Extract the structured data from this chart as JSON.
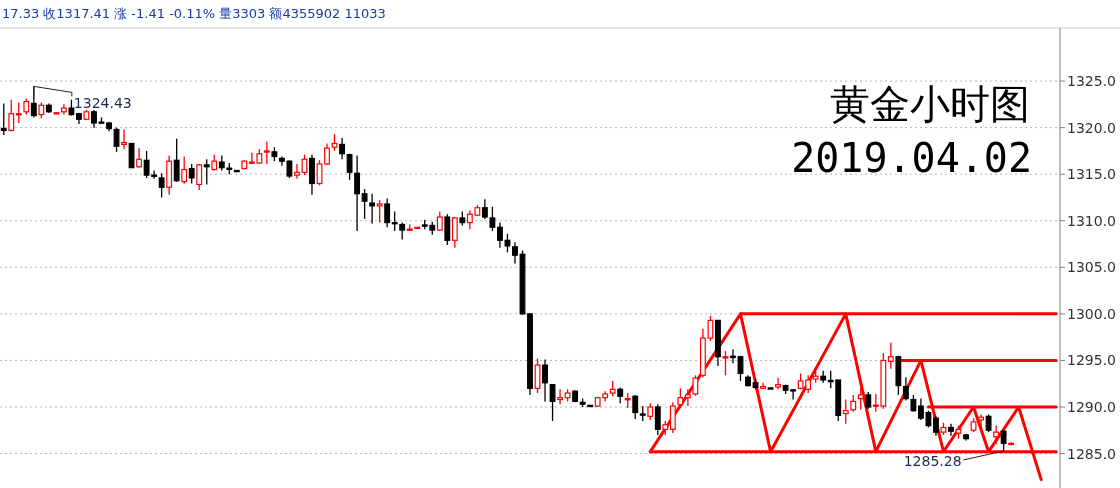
{
  "chart_data": {
    "type": "candlestick",
    "title": "黄金小时图",
    "subtitle": "2019.04.02",
    "annotations": [
      "17.33 收1317.41 涨 -1.41 -0.11% 量3303 额4355902 11033",
      "1324.43",
      "1285.28"
    ],
    "categories": [
      null,
      null,
      null,
      null,
      null,
      null,
      null,
      null,
      null,
      null,
      null,
      null,
      null,
      null,
      null,
      null,
      null,
      null,
      null,
      null,
      null,
      null,
      null,
      null,
      null,
      null,
      null,
      null,
      null,
      null,
      null,
      null,
      null,
      null,
      null,
      null,
      null,
      null,
      null,
      null,
      null,
      null,
      null,
      null,
      null,
      null,
      null,
      null,
      null,
      null,
      null,
      null,
      null,
      null,
      null,
      null,
      null,
      null,
      null,
      null,
      null,
      null,
      null,
      null,
      null,
      null,
      null,
      null,
      null,
      null,
      null,
      null,
      null,
      null,
      null,
      null,
      null,
      null,
      null,
      null,
      null,
      null,
      null,
      null,
      null,
      null,
      null,
      null,
      null,
      null,
      null,
      null,
      null,
      null,
      null,
      null,
      null,
      null,
      null,
      null,
      null,
      null,
      null,
      null,
      null,
      null,
      null,
      null,
      null,
      null,
      null,
      null,
      null,
      null,
      null,
      null,
      null,
      null,
      null,
      null,
      null,
      null,
      null,
      null,
      null,
      null,
      null,
      null,
      null,
      null,
      null,
      null,
      null,
      null,
      null,
      null,
      null,
      null,
      null,
      null,
      null
    ],
    "ohlc": [
      [
        1319.9,
        1322.6,
        1319.2,
        1319.7
      ],
      [
        1319.7,
        1323.0,
        1319.6,
        1321.5
      ],
      [
        1321.4,
        1322.7,
        1320.5,
        1321.5
      ],
      [
        1321.7,
        1323.1,
        1321.4,
        1322.8
      ],
      [
        1322.6,
        1324.43,
        1321.1,
        1321.3
      ],
      [
        1321.4,
        1322.7,
        1321.0,
        1322.4
      ],
      [
        1322.4,
        1322.6,
        1321.6,
        1321.7
      ],
      [
        1321.5,
        1321.6,
        1321.5,
        1321.6
      ],
      [
        1321.7,
        1322.5,
        1321.4,
        1322.1
      ],
      [
        1322.1,
        1323.0,
        1321.3,
        1321.4
      ],
      [
        1321.5,
        1321.6,
        1320.4,
        1320.9
      ],
      [
        1320.9,
        1321.9,
        1320.8,
        1321.7
      ],
      [
        1321.7,
        1321.9,
        1320.0,
        1320.5
      ],
      [
        1320.6,
        1321.1,
        1320.4,
        1320.5
      ],
      [
        1320.5,
        1320.6,
        1319.6,
        1319.9
      ],
      [
        1319.8,
        1320.0,
        1317.4,
        1318.0
      ],
      [
        1318.2,
        1319.8,
        1317.7,
        1318.4
      ],
      [
        1318.3,
        1318.3,
        1315.7,
        1315.7
      ],
      [
        1315.8,
        1317.8,
        1315.7,
        1316.6
      ],
      [
        1316.5,
        1317.5,
        1314.6,
        1314.9
      ],
      [
        1314.9,
        1315.4,
        1314.5,
        1314.8
      ],
      [
        1314.6,
        1315.1,
        1312.5,
        1313.6
      ],
      [
        1313.6,
        1317.0,
        1312.8,
        1316.4
      ],
      [
        1316.5,
        1318.8,
        1314.2,
        1314.3
      ],
      [
        1314.2,
        1316.9,
        1314.0,
        1315.5
      ],
      [
        1315.6,
        1316.1,
        1314.0,
        1314.6
      ],
      [
        1313.9,
        1316.1,
        1313.3,
        1316.0
      ],
      [
        1316.0,
        1316.6,
        1313.9,
        1315.8
      ],
      [
        1315.5,
        1317.1,
        1315.4,
        1316.4
      ],
      [
        1316.3,
        1317.0,
        1315.4,
        1315.7
      ],
      [
        1315.65,
        1316.2,
        1315.0,
        1315.6
      ],
      [
        1315.4,
        1315.4,
        1315.3,
        1315.35
      ],
      [
        1315.6,
        1316.5,
        1315.5,
        1316.4
      ],
      [
        1316.2,
        1317.3,
        1316.1,
        1316.3
      ],
      [
        1316.2,
        1317.7,
        1316.1,
        1317.2
      ],
      [
        1317.4,
        1318.5,
        1316.1,
        1317.5
      ],
      [
        1317.4,
        1317.9,
        1316.4,
        1316.9
      ],
      [
        1316.7,
        1316.9,
        1315.9,
        1316.4
      ],
      [
        1316.4,
        1316.5,
        1314.6,
        1314.8
      ],
      [
        1314.9,
        1316.1,
        1314.5,
        1315.2
      ],
      [
        1315.2,
        1317.1,
        1314.9,
        1316.6
      ],
      [
        1316.7,
        1317.1,
        1312.8,
        1314.0
      ],
      [
        1314.0,
        1316.5,
        1313.8,
        1316.1
      ],
      [
        1316.1,
        1318.3,
        1316.0,
        1317.8
      ],
      [
        1317.9,
        1319.3,
        1317.5,
        1318.3
      ],
      [
        1318.2,
        1318.9,
        1316.6,
        1317.2
      ],
      [
        1317.1,
        1317.2,
        1314.4,
        1315.2
      ],
      [
        1315.1,
        1317.0,
        1308.9,
        1312.9
      ],
      [
        1312.9,
        1313.4,
        1310.2,
        1312.1
      ],
      [
        1311.9,
        1312.9,
        1309.7,
        1311.6
      ],
      [
        1311.6,
        1312.2,
        1309.8,
        1311.8
      ],
      [
        1311.8,
        1312.4,
        1309.3,
        1309.8
      ],
      [
        1309.8,
        1311.0,
        1308.9,
        1309.7
      ],
      [
        1309.6,
        1309.8,
        1308.0,
        1309.0
      ],
      [
        1309.0,
        1309.6,
        1308.9,
        1309.1
      ],
      [
        1309.25,
        1309.3,
        1309.2,
        1309.3
      ],
      [
        1309.55,
        1310.1,
        1309.1,
        1309.5
      ],
      [
        1309.5,
        1309.9,
        1308.5,
        1309.0
      ],
      [
        1309.0,
        1311.0,
        1308.9,
        1310.4
      ],
      [
        1310.4,
        1310.7,
        1307.4,
        1307.9
      ],
      [
        1307.9,
        1310.4,
        1307.1,
        1310.3
      ],
      [
        1310.3,
        1311.0,
        1309.5,
        1309.8
      ],
      [
        1309.8,
        1311.1,
        1309.1,
        1310.7
      ],
      [
        1310.6,
        1311.7,
        1310.5,
        1311.4
      ],
      [
        1311.4,
        1312.3,
        1310.2,
        1310.4
      ],
      [
        1310.3,
        1311.5,
        1308.9,
        1309.3
      ],
      [
        1309.3,
        1309.8,
        1307.1,
        1307.9
      ],
      [
        1307.9,
        1308.6,
        1306.6,
        1307.3
      ],
      [
        1307.2,
        1307.7,
        1305.4,
        1306.3
      ],
      [
        1306.4,
        1306.8,
        1299.9,
        1300.0
      ],
      [
        1300.0,
        1300.1,
        1291.3,
        1292.0
      ],
      [
        1292.0,
        1295.2,
        1291.5,
        1294.5
      ],
      [
        1294.5,
        1295.1,
        1290.6,
        1292.6
      ],
      [
        1292.4,
        1292.4,
        1288.5,
        1290.6
      ],
      [
        1290.8,
        1291.9,
        1290.3,
        1291.0
      ],
      [
        1291.0,
        1291.9,
        1290.6,
        1291.5
      ],
      [
        1291.7,
        1291.8,
        1290.5,
        1290.6
      ],
      [
        1290.5,
        1290.9,
        1290.0,
        1290.3
      ],
      [
        1290.18,
        1290.2,
        1290.1,
        1290.15
      ],
      [
        1290.1,
        1291.1,
        1290.0,
        1291.0
      ],
      [
        1291.0,
        1291.7,
        1290.6,
        1291.4
      ],
      [
        1291.5,
        1292.8,
        1291.15,
        1291.9
      ],
      [
        1291.9,
        1292.1,
        1290.4,
        1291.15
      ],
      [
        1290.8,
        1291.5,
        1289.9,
        1290.9
      ],
      [
        1291.15,
        1291.3,
        1288.7,
        1289.4
      ],
      [
        1289.25,
        1290.1,
        1288.5,
        1289.2
      ],
      [
        1289.0,
        1290.4,
        1288.6,
        1290.0
      ],
      [
        1290.0,
        1290.3,
        1287.0,
        1287.6
      ],
      [
        1287.6,
        1288.5,
        1287.0,
        1288.1
      ],
      [
        1287.6,
        1290.5,
        1287.2,
        1290.1
      ],
      [
        1290.25,
        1292.0,
        1289.9,
        1291.0
      ],
      [
        1291.0,
        1291.9,
        1290.1,
        1291.3
      ],
      [
        1291.4,
        1293.4,
        1291.2,
        1293.1
      ],
      [
        1293.4,
        1298.4,
        1293.2,
        1297.4
      ],
      [
        1297.4,
        1299.8,
        1297.1,
        1299.3
      ],
      [
        1299.3,
        1299.3,
        1294.4,
        1295.4
      ],
      [
        1295.3,
        1296.0,
        1293.4,
        1295.4
      ],
      [
        1295.45,
        1296.2,
        1294.7,
        1295.4
      ],
      [
        1295.4,
        1295.5,
        1292.8,
        1293.6
      ],
      [
        1293.2,
        1293.4,
        1292.2,
        1292.3
      ],
      [
        1292.6,
        1293.0,
        1291.9,
        1292.1
      ],
      [
        1292.0,
        1292.6,
        1291.9,
        1292.2
      ],
      [
        1292.05,
        1292.1,
        1291.95,
        1292.0
      ],
      [
        1292.15,
        1293.1,
        1291.9,
        1292.4
      ],
      [
        1292.3,
        1292.4,
        1291.4,
        1291.8
      ],
      [
        1291.85,
        1291.85,
        1290.8,
        1291.8
      ],
      [
        1292.0,
        1293.6,
        1291.9,
        1292.8
      ],
      [
        1291.9,
        1293.4,
        1291.5,
        1292.9
      ],
      [
        1293.0,
        1293.8,
        1292.6,
        1293.3
      ],
      [
        1293.3,
        1293.9,
        1292.6,
        1292.9
      ],
      [
        1292.85,
        1293.9,
        1292.0,
        1292.8
      ],
      [
        1292.9,
        1292.9,
        1288.5,
        1289.1
      ],
      [
        1289.3,
        1290.8,
        1288.2,
        1289.6
      ],
      [
        1289.7,
        1291.3,
        1289.5,
        1290.6
      ],
      [
        1290.9,
        1292.1,
        1289.7,
        1291.3
      ],
      [
        1291.3,
        1291.6,
        1289.8,
        1290.0
      ],
      [
        1290.1,
        1291.4,
        1289.5,
        1290.2
      ],
      [
        1290.1,
        1295.8,
        1289.8,
        1295.0
      ],
      [
        1294.9,
        1296.9,
        1294.1,
        1295.4
      ],
      [
        1295.4,
        1295.5,
        1291.3,
        1292.3
      ],
      [
        1292.2,
        1293.2,
        1290.7,
        1290.9
      ],
      [
        1290.8,
        1291.3,
        1289.5,
        1289.6
      ],
      [
        1290.1,
        1290.9,
        1288.6,
        1288.8
      ],
      [
        1289.4,
        1289.6,
        1287.8,
        1288.0
      ],
      [
        1288.8,
        1289.0,
        1286.9,
        1287.3
      ],
      [
        1287.3,
        1288.3,
        1287.0,
        1287.8
      ],
      [
        1287.8,
        1288.2,
        1286.9,
        1287.4
      ],
      [
        1287.2,
        1288.0,
        1286.6,
        1287.6
      ],
      [
        1287.0,
        1287.1,
        1286.4,
        1286.6
      ],
      [
        1287.5,
        1288.8,
        1287.3,
        1288.4
      ],
      [
        1288.6,
        1289.2,
        1287.3,
        1288.9
      ],
      [
        1289.0,
        1289.2,
        1287.3,
        1287.5
      ],
      [
        1286.8,
        1288.0,
        1286.0,
        1287.3
      ],
      [
        1287.4,
        1287.5,
        1285.28,
        1286.1
      ],
      [
        1286.0,
        1286.2,
        1285.9,
        1286.1
      ],
      null,
      null,
      null,
      null,
      null,
      null
    ],
    "colors": [
      "#000000",
      "#ff0000",
      "#ff0000",
      "#ff0000",
      "#000000",
      "#ff0000",
      "#000000",
      "#ff0000",
      "#ff0000",
      "#000000",
      "#000000",
      "#ff0000",
      "#000000",
      "#000000",
      "#000000",
      "#000000",
      "#ff0000",
      "#000000",
      "#ff0000",
      "#000000",
      "#000000",
      "#000000",
      "#ff0000",
      "#000000",
      "#ff0000",
      "#000000",
      "#ff0000",
      "#000000",
      "#ff0000",
      "#000000",
      "#000000",
      "#000000",
      "#ff0000",
      "#ff0000",
      "#ff0000",
      "#ff0000",
      "#000000",
      "#000000",
      "#000000",
      "#ff0000",
      "#ff0000",
      "#000000",
      "#ff0000",
      "#ff0000",
      "#ff0000",
      "#000000",
      "#000000",
      "#000000",
      "#000000",
      "#000000",
      "#ff0000",
      "#000000",
      "#000000",
      "#000000",
      "#ff0000",
      "#ff0000",
      "#000000",
      "#000000",
      "#ff0000",
      "#000000",
      "#ff0000",
      "#000000",
      "#ff0000",
      "#ff0000",
      "#000000",
      "#000000",
      "#000000",
      "#000000",
      "#000000",
      "#000000",
      "#000000",
      "#ff0000",
      "#000000",
      "#000000",
      "#ff0000",
      "#ff0000",
      "#000000",
      "#000000",
      "#000000",
      "#ff0000",
      "#ff0000",
      "#ff0000",
      "#000000",
      "#ff0000",
      "#000000",
      "#000000",
      "#ff0000",
      "#000000",
      "#ff0000",
      "#ff0000",
      "#ff0000",
      "#ff0000",
      "#ff0000",
      "#ff0000",
      "#ff0000",
      "#000000",
      "#ff0000",
      "#000000",
      "#000000",
      "#000000",
      "#000000",
      "#ff0000",
      "#000000",
      "#ff0000",
      "#000000",
      "#000000",
      "#ff0000",
      "#ff0000",
      "#ff0000",
      "#000000",
      "#000000",
      "#000000",
      "#ff0000",
      "#ff0000",
      "#ff0000",
      "#000000",
      "#ff0000",
      "#ff0000",
      "#ff0000",
      "#000000",
      "#000000",
      "#000000",
      "#000000",
      "#000000",
      "#000000",
      "#ff0000",
      "#000000",
      "#ff0000",
      "#000000",
      "#ff0000",
      "#ff0000",
      "#000000",
      "#ff0000",
      "#000000",
      "#ff0000",
      null,
      null,
      null,
      null,
      null,
      null
    ],
    "series": [
      {
        "type": "line",
        "color": "#ff0000",
        "values": [
          null,
          null,
          null,
          null,
          null,
          null,
          null,
          null,
          null,
          null,
          null,
          null,
          null,
          null,
          null,
          null,
          null,
          null,
          null,
          null,
          null,
          null,
          null,
          null,
          null,
          null,
          null,
          null,
          null,
          null,
          null,
          null,
          null,
          null,
          null,
          null,
          null,
          null,
          null,
          null,
          null,
          null,
          null,
          null,
          null,
          null,
          null,
          null,
          null,
          null,
          null,
          null,
          null,
          null,
          null,
          null,
          null,
          null,
          null,
          null,
          null,
          null,
          null,
          null,
          null,
          null,
          null,
          null,
          null,
          null,
          null,
          null,
          null,
          null,
          null,
          null,
          null,
          null,
          null,
          null,
          null,
          null,
          null,
          null,
          null,
          null,
          1285.2,
          null,
          null,
          null,
          null,
          null,
          null,
          null,
          null,
          null,
          null,
          null,
          1300,
          null,
          null,
          null,
          1285.2,
          null,
          null,
          null,
          null,
          null,
          null,
          null,
          null,
          null,
          1300,
          null,
          null,
          null,
          1285.2,
          null,
          null,
          null,
          null,
          null,
          1295,
          null,
          null,
          1285.2,
          null,
          null,
          null,
          1290,
          null,
          1285.2,
          null,
          null,
          null,
          1290,
          null,
          null,
          1282.2,
          null,
          null
        ]
      },
      {
        "type": "line",
        "color": "#ff0000",
        "values": [
          null,
          null,
          null,
          null,
          null,
          null,
          null,
          null,
          null,
          null,
          null,
          null,
          null,
          null,
          null,
          null,
          null,
          null,
          null,
          null,
          null,
          null,
          null,
          null,
          null,
          null,
          null,
          null,
          null,
          null,
          null,
          null,
          null,
          null,
          null,
          null,
          null,
          null,
          null,
          null,
          null,
          null,
          null,
          null,
          null,
          null,
          null,
          null,
          null,
          null,
          null,
          null,
          null,
          null,
          null,
          null,
          null,
          null,
          null,
          null,
          null,
          null,
          null,
          null,
          null,
          null,
          null,
          null,
          null,
          null,
          null,
          null,
          null,
          null,
          null,
          null,
          null,
          null,
          null,
          null,
          null,
          null,
          null,
          null,
          null,
          null,
          null,
          null,
          null,
          null,
          null,
          null,
          null,
          null,
          null,
          null,
          null,
          null,
          1300,
          null,
          null,
          null,
          null,
          null,
          null,
          null,
          null,
          null,
          null,
          null,
          null,
          null,
          null,
          null,
          null,
          null,
          null,
          null,
          null,
          null,
          null,
          null,
          null,
          null,
          null,
          null,
          null,
          null,
          null,
          null,
          null,
          null,
          null,
          null,
          null,
          null,
          null,
          null,
          null,
          null,
          1300
        ]
      },
      {
        "type": "line",
        "color": "#ff0000",
        "values": [
          null,
          null,
          null,
          null,
          null,
          null,
          null,
          null,
          null,
          null,
          null,
          null,
          null,
          null,
          null,
          null,
          null,
          null,
          null,
          null,
          null,
          null,
          null,
          null,
          null,
          null,
          null,
          null,
          null,
          null,
          null,
          null,
          null,
          null,
          null,
          null,
          null,
          null,
          null,
          null,
          null,
          null,
          null,
          null,
          null,
          null,
          null,
          null,
          null,
          null,
          null,
          null,
          null,
          null,
          null,
          null,
          null,
          null,
          null,
          null,
          null,
          null,
          null,
          null,
          null,
          null,
          null,
          null,
          null,
          null,
          null,
          null,
          null,
          null,
          null,
          null,
          null,
          null,
          null,
          null,
          null,
          null,
          null,
          null,
          null,
          null,
          null,
          null,
          null,
          null,
          null,
          null,
          null,
          null,
          null,
          null,
          null,
          null,
          null,
          null,
          null,
          null,
          null,
          null,
          null,
          null,
          null,
          null,
          null,
          null,
          null,
          null,
          null,
          null,
          null,
          null,
          null,
          null,
          null,
          1295,
          null,
          null,
          null,
          null,
          null,
          null,
          null,
          null,
          null,
          null,
          null,
          null,
          null,
          null,
          null,
          null,
          null,
          null,
          null,
          null,
          1295
        ]
      },
      {
        "type": "line",
        "color": "#ff0000",
        "values": [
          null,
          null,
          null,
          null,
          null,
          null,
          null,
          null,
          null,
          null,
          null,
          null,
          null,
          null,
          null,
          null,
          null,
          null,
          null,
          null,
          null,
          null,
          null,
          null,
          null,
          null,
          null,
          null,
          null,
          null,
          null,
          null,
          null,
          null,
          null,
          null,
          null,
          null,
          null,
          null,
          null,
          null,
          null,
          null,
          null,
          null,
          null,
          null,
          null,
          null,
          null,
          null,
          null,
          null,
          null,
          null,
          null,
          null,
          null,
          null,
          null,
          null,
          null,
          null,
          null,
          null,
          null,
          null,
          null,
          null,
          null,
          null,
          null,
          null,
          null,
          null,
          null,
          null,
          null,
          null,
          null,
          null,
          null,
          null,
          null,
          null,
          null,
          null,
          null,
          null,
          null,
          null,
          null,
          null,
          null,
          null,
          null,
          null,
          null,
          null,
          null,
          null,
          null,
          null,
          null,
          null,
          null,
          null,
          null,
          null,
          null,
          null,
          null,
          null,
          null,
          null,
          null,
          null,
          null,
          null,
          null,
          null,
          null,
          1290,
          null,
          null,
          null,
          null,
          null,
          null,
          null,
          null,
          null,
          null,
          null,
          null,
          null,
          null,
          null,
          null,
          1290
        ]
      },
      {
        "type": "line",
        "color": "#ff0000",
        "values": [
          null,
          null,
          null,
          null,
          null,
          null,
          null,
          null,
          null,
          null,
          null,
          null,
          null,
          null,
          null,
          null,
          null,
          null,
          null,
          null,
          null,
          null,
          null,
          null,
          null,
          null,
          null,
          null,
          null,
          null,
          null,
          null,
          null,
          null,
          null,
          null,
          null,
          null,
          null,
          null,
          null,
          null,
          null,
          null,
          null,
          null,
          null,
          null,
          null,
          null,
          null,
          null,
          null,
          null,
          null,
          null,
          null,
          null,
          null,
          null,
          null,
          null,
          null,
          null,
          null,
          null,
          null,
          null,
          null,
          null,
          null,
          null,
          null,
          null,
          null,
          null,
          null,
          null,
          null,
          null,
          null,
          null,
          null,
          null,
          null,
          null,
          1285.2,
          null,
          null,
          null,
          null,
          null,
          null,
          null,
          null,
          null,
          null,
          null,
          null,
          null,
          null,
          null,
          null,
          null,
          null,
          null,
          null,
          null,
          null,
          null,
          null,
          null,
          null,
          null,
          null,
          null,
          null,
          null,
          null,
          null,
          null,
          null,
          null,
          null,
          null,
          null,
          null,
          null,
          null,
          null,
          null,
          null,
          null,
          null,
          null,
          null,
          null,
          null,
          null,
          null,
          1285.2
        ]
      }
    ],
    "ylim": [
      1281.3,
      1330.7
    ],
    "yticks": [
      {
        "value": 1285,
        "label": "1285.0"
      },
      {
        "value": 1290,
        "label": "1290.0"
      },
      {
        "value": 1295,
        "label": "1295.0"
      },
      {
        "value": 1300,
        "label": "1300.0"
      },
      {
        "value": 1305,
        "label": "1305.0"
      },
      {
        "value": 1310,
        "label": "1310.0"
      },
      {
        "value": 1315,
        "label": "1315.0"
      },
      {
        "value": 1320,
        "label": "1320.0"
      },
      {
        "value": 1325,
        "label": "1325.0"
      }
    ],
    "grid": "y",
    "tick_labels": "y"
  }
}
